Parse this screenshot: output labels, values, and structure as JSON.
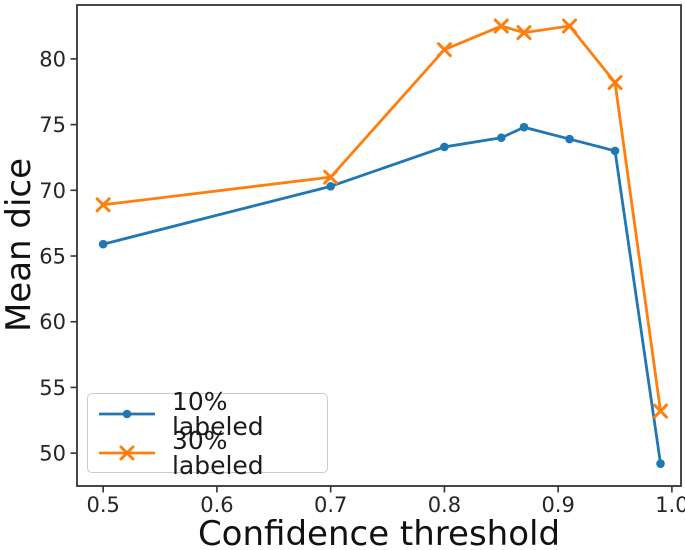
{
  "chart_data": {
    "type": "line",
    "title": "",
    "xlabel": "Confidence threshold",
    "ylabel": "Mean dice",
    "x": [
      0.5,
      0.7,
      0.8,
      0.85,
      0.87,
      0.91,
      0.95,
      0.99
    ],
    "series": [
      {
        "name": "10% labeled",
        "color": "#1f77b4",
        "marker": "circle",
        "values": [
          65.9,
          70.3,
          73.3,
          74.0,
          74.8,
          73.9,
          73.0,
          49.2
        ]
      },
      {
        "name": "30% labeled",
        "color": "#ff7f0e",
        "marker": "x",
        "values": [
          68.9,
          71.0,
          80.7,
          82.5,
          82.0,
          82.5,
          78.2,
          53.2
        ]
      }
    ],
    "xlim": [
      0.477,
      1.008
    ],
    "ylim": [
      47.5,
      84.1
    ],
    "x_tick_values": [
      0.5,
      0.6,
      0.7,
      0.8,
      0.9,
      1.0
    ],
    "x_tick_labels": [
      "0.5",
      "0.6",
      "0.7",
      "0.8",
      "0.9",
      "1.0"
    ],
    "y_tick_values": [
      50,
      55,
      60,
      65,
      70,
      75,
      80
    ],
    "y_tick_labels": [
      "50",
      "55",
      "60",
      "65",
      "70",
      "75",
      "80"
    ],
    "grid": false,
    "legend_position": "lower left",
    "axis_color": "#333333"
  }
}
